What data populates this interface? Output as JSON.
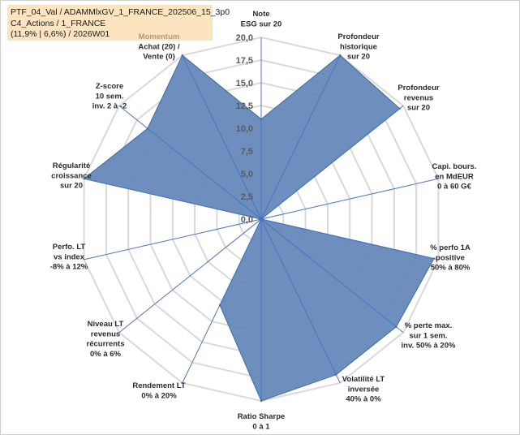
{
  "info": {
    "line1": "PTF_04_Val / ADAMMlxGV_1_FRANCE_202506_15_3p0",
    "line2": "C4_Actions / 1_FRANCE",
    "line3": "(11,9% | 6,6%) / 2026W01"
  },
  "chart_data": {
    "type": "radar",
    "title": "",
    "rmin": 0,
    "rmax": 20,
    "ticks": [
      "0,0",
      "2,5",
      "5,0",
      "7,5",
      "10,0",
      "12,5",
      "15,0",
      "17,5",
      "20,0"
    ],
    "tick_values": [
      0,
      2.5,
      5,
      7.5,
      10,
      12.5,
      15,
      17.5,
      20
    ],
    "axes": [
      {
        "label": [
          "Note",
          "ESG sur 20"
        ],
        "value": 11,
        "muted_line": -1
      },
      {
        "label": [
          "Profondeur",
          "historique",
          "sur 20"
        ],
        "value": 20,
        "muted_line": -1
      },
      {
        "label": [
          "Profondeur",
          "revenus",
          "sur 20"
        ],
        "value": 19.5,
        "muted_line": -1
      },
      {
        "label": [
          "Capi. bours.",
          "en MdEUR",
          "0 à 60 G€"
        ],
        "value": 0,
        "muted_line": -1
      },
      {
        "label": [
          "% perfo 1A",
          "positive",
          "50% à 80%"
        ],
        "value": 19.5,
        "muted_line": -1
      },
      {
        "label": [
          "% perte max.",
          "sur 1 sem.",
          "inv. 50% à 20%"
        ],
        "value": 19,
        "muted_line": -1
      },
      {
        "label": [
          "Volatilité LT",
          "inversée",
          "40% à 0%"
        ],
        "value": 19,
        "muted_line": -1
      },
      {
        "label": [
          "Ratio Sharpe",
          "0 à 1"
        ],
        "value": 20,
        "muted_line": -1
      },
      {
        "label": [
          "Rendement LT",
          "0% à 20%"
        ],
        "value": 10.5,
        "muted_line": -1
      },
      {
        "label": [
          "Niveau LT",
          "revenus",
          "récurrents",
          "0% à 6%"
        ],
        "value": 0,
        "muted_line": -1
      },
      {
        "label": [
          "Perfo. LT",
          "vs index",
          "-8% à 12%"
        ],
        "value": 0,
        "muted_line": -1
      },
      {
        "label": [
          "Régularité",
          "croissance",
          "sur 20"
        ],
        "value": 20,
        "muted_line": -1
      },
      {
        "label": [
          "Z-score",
          "10 sem.",
          "inv. 2 à -2"
        ],
        "value": 16,
        "muted_line": -1
      },
      {
        "label": [
          "Momentum",
          "Achat (20) /",
          "Vente (0)"
        ],
        "value": 20,
        "muted_line": 0
      }
    ],
    "series": [
      {
        "name": "PTF_04_Val",
        "fill": "#6387b8",
        "stroke": "#3c6aa6"
      }
    ],
    "colors": {
      "grid_ring": "#d9d9d9",
      "grid_spoke": "#c7c7c7",
      "radial_axis": "#4472c4"
    }
  }
}
